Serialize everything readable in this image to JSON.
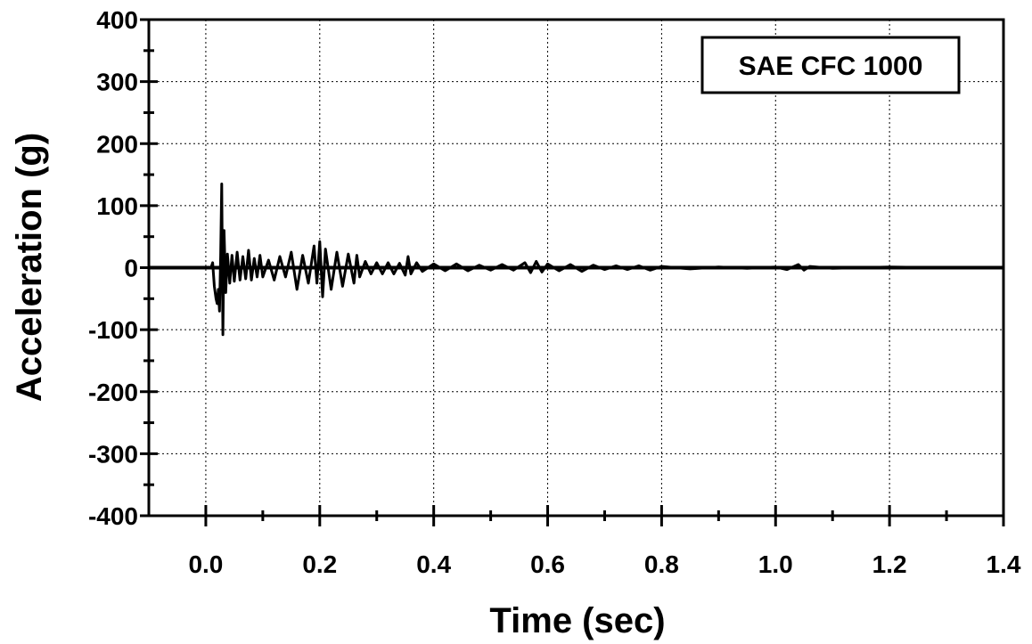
{
  "chart_data": {
    "type": "line",
    "title": "",
    "xlabel": "Time  (sec)",
    "ylabel": "Acceleration  (g)",
    "xlim": [
      -0.1,
      1.4
    ],
    "ylim": [
      -400,
      400
    ],
    "x_ticks": [
      0.0,
      0.2,
      0.4,
      0.6,
      0.8,
      1.0,
      1.2,
      1.4
    ],
    "x_tick_labels": [
      "0.0",
      "0.2",
      "0.4",
      "0.6",
      "0.8",
      "1.0",
      "1.2",
      "1.4"
    ],
    "y_ticks": [
      400,
      300,
      200,
      100,
      0,
      -100,
      -200,
      -300,
      -400
    ],
    "y_tick_labels": [
      "400",
      "300",
      "200",
      "100",
      "0",
      "-100",
      "-200",
      "-300",
      "-400"
    ],
    "grid": true,
    "legend_position": "top-right",
    "annotation": "SAE CFC 1000",
    "series": [
      {
        "values": [
          [
            -0.1,
            0
          ],
          [
            0.0,
            0
          ],
          [
            0.005,
            0
          ],
          [
            0.01,
            2
          ],
          [
            0.012,
            8
          ],
          [
            0.015,
            -30
          ],
          [
            0.018,
            -50
          ],
          [
            0.02,
            -58
          ],
          [
            0.022,
            -35
          ],
          [
            0.024,
            -70
          ],
          [
            0.026,
            20
          ],
          [
            0.028,
            135
          ],
          [
            0.03,
            -108
          ],
          [
            0.032,
            60
          ],
          [
            0.035,
            -40
          ],
          [
            0.038,
            22
          ],
          [
            0.042,
            -25
          ],
          [
            0.046,
            20
          ],
          [
            0.05,
            -22
          ],
          [
            0.055,
            25
          ],
          [
            0.06,
            -20
          ],
          [
            0.065,
            18
          ],
          [
            0.07,
            -18
          ],
          [
            0.075,
            28
          ],
          [
            0.08,
            -20
          ],
          [
            0.085,
            15
          ],
          [
            0.09,
            -15
          ],
          [
            0.095,
            20
          ],
          [
            0.1,
            -15
          ],
          [
            0.11,
            12
          ],
          [
            0.12,
            -20
          ],
          [
            0.13,
            18
          ],
          [
            0.14,
            -15
          ],
          [
            0.15,
            25
          ],
          [
            0.16,
            -35
          ],
          [
            0.17,
            20
          ],
          [
            0.18,
            -25
          ],
          [
            0.19,
            35
          ],
          [
            0.195,
            -25
          ],
          [
            0.2,
            42
          ],
          [
            0.205,
            -47
          ],
          [
            0.21,
            30
          ],
          [
            0.22,
            -35
          ],
          [
            0.23,
            25
          ],
          [
            0.24,
            -30
          ],
          [
            0.25,
            22
          ],
          [
            0.26,
            -25
          ],
          [
            0.265,
            20
          ],
          [
            0.27,
            -15
          ],
          [
            0.28,
            10
          ],
          [
            0.29,
            -10
          ],
          [
            0.3,
            8
          ],
          [
            0.31,
            -10
          ],
          [
            0.32,
            8
          ],
          [
            0.33,
            -10
          ],
          [
            0.34,
            7
          ],
          [
            0.35,
            -12
          ],
          [
            0.355,
            18
          ],
          [
            0.36,
            -10
          ],
          [
            0.37,
            8
          ],
          [
            0.38,
            -6
          ],
          [
            0.4,
            6
          ],
          [
            0.42,
            -5
          ],
          [
            0.44,
            6
          ],
          [
            0.46,
            -5
          ],
          [
            0.48,
            4
          ],
          [
            0.5,
            -4
          ],
          [
            0.52,
            5
          ],
          [
            0.54,
            -4
          ],
          [
            0.56,
            8
          ],
          [
            0.57,
            -8
          ],
          [
            0.58,
            10
          ],
          [
            0.59,
            -7
          ],
          [
            0.6,
            6
          ],
          [
            0.62,
            -5
          ],
          [
            0.64,
            5
          ],
          [
            0.66,
            -6
          ],
          [
            0.68,
            4
          ],
          [
            0.7,
            -3
          ],
          [
            0.72,
            3
          ],
          [
            0.74,
            -3
          ],
          [
            0.76,
            3
          ],
          [
            0.78,
            -4
          ],
          [
            0.8,
            2
          ],
          [
            0.85,
            -2
          ],
          [
            0.9,
            1
          ],
          [
            0.95,
            -1
          ],
          [
            1.0,
            1
          ],
          [
            1.02,
            -3
          ],
          [
            1.04,
            5
          ],
          [
            1.05,
            -4
          ],
          [
            1.06,
            2
          ],
          [
            1.1,
            -1
          ],
          [
            1.2,
            1
          ],
          [
            1.3,
            0
          ],
          [
            1.4,
            0
          ]
        ]
      }
    ]
  }
}
